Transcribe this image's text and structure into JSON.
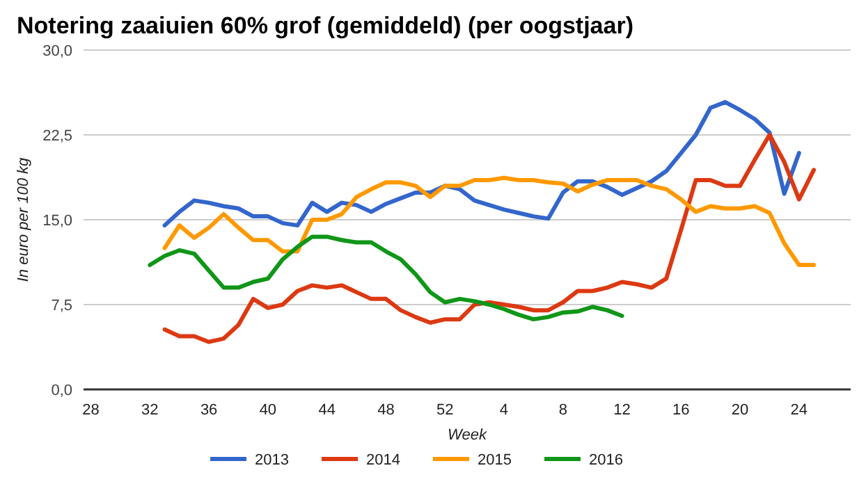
{
  "chart_data": {
    "type": "line",
    "title": "Notering zaaiuien 60% grof (gemiddeld) (per oogstjaar)",
    "xlabel": "Week",
    "ylabel": "In euro per 100 kg",
    "categories": [
      "28",
      null,
      null,
      null,
      "32",
      null,
      null,
      null,
      "36",
      null,
      null,
      null,
      "40",
      null,
      null,
      null,
      "44",
      null,
      null,
      null,
      "48",
      null,
      null,
      null,
      "52",
      null,
      null,
      null,
      "4",
      null,
      null,
      null,
      "8",
      null,
      null,
      null,
      "12",
      null,
      null,
      null,
      "16",
      null,
      null,
      null,
      "20",
      null,
      null,
      null,
      "24",
      null,
      null,
      null
    ],
    "series": [
      {
        "name": "2013",
        "color": "#3366cc",
        "values": [
          null,
          null,
          null,
          null,
          null,
          14.5,
          15.7,
          16.7,
          16.5,
          16.2,
          16.0,
          15.3,
          15.3,
          14.7,
          14.5,
          16.5,
          15.7,
          16.5,
          16.3,
          15.7,
          16.4,
          16.9,
          17.4,
          17.4,
          18.0,
          17.7,
          16.7,
          16.3,
          15.9,
          15.6,
          15.3,
          15.1,
          17.4,
          18.4,
          18.4,
          17.9,
          17.2,
          17.8,
          18.4,
          19.3,
          20.9,
          22.5,
          24.9,
          25.4,
          24.7,
          23.9,
          22.7,
          17.3,
          20.9,
          null,
          null,
          null
        ]
      },
      {
        "name": "2014",
        "color": "#dc3912",
        "values": [
          null,
          null,
          null,
          null,
          null,
          5.3,
          4.7,
          4.7,
          4.2,
          4.5,
          5.7,
          8.0,
          7.2,
          7.5,
          8.7,
          9.2,
          9.0,
          9.2,
          8.6,
          8.0,
          8.0,
          7.0,
          6.4,
          5.9,
          6.2,
          6.2,
          7.5,
          7.7,
          7.5,
          7.3,
          7.0,
          7.0,
          7.7,
          8.7,
          8.7,
          9.0,
          9.5,
          9.3,
          9.0,
          9.8,
          14.1,
          18.5,
          18.5,
          18.0,
          18.0,
          20.3,
          22.5,
          20.1,
          16.8,
          19.4,
          null,
          null
        ]
      },
      {
        "name": "2015",
        "color": "#ff9900",
        "values": [
          null,
          null,
          null,
          null,
          null,
          12.5,
          14.5,
          13.4,
          14.3,
          15.5,
          14.3,
          13.2,
          13.2,
          12.2,
          12.2,
          15.0,
          15.0,
          15.5,
          17.0,
          17.7,
          18.3,
          18.3,
          18.0,
          17.0,
          18.0,
          18.0,
          18.5,
          18.5,
          18.7,
          18.5,
          18.5,
          18.3,
          18.2,
          17.5,
          18.1,
          18.5,
          18.5,
          18.5,
          18.0,
          17.7,
          16.8,
          15.7,
          16.2,
          16.0,
          16.0,
          16.2,
          15.6,
          12.9,
          11.0,
          11.0,
          null,
          null
        ]
      },
      {
        "name": "2016",
        "color": "#109618",
        "values": [
          null,
          null,
          null,
          null,
          11.0,
          11.8,
          12.3,
          12.0,
          10.5,
          9.0,
          9.0,
          9.5,
          9.8,
          11.5,
          12.6,
          13.5,
          13.5,
          13.2,
          13.0,
          13.0,
          12.2,
          11.5,
          10.2,
          8.6,
          7.7,
          8.0,
          7.8,
          7.5,
          7.1,
          6.6,
          6.2,
          6.4,
          6.8,
          6.9,
          7.3,
          7.0,
          6.5,
          null,
          null,
          null,
          null,
          null,
          null,
          null,
          null,
          null,
          null,
          null,
          null,
          null,
          null,
          null
        ]
      }
    ],
    "ylim": [
      0,
      30
    ],
    "yticks": [
      {
        "value": 0,
        "label": "0,0"
      },
      {
        "value": 7.5,
        "label": "7,5"
      },
      {
        "value": 15,
        "label": "15,0"
      },
      {
        "value": 22.5,
        "label": "22,5"
      },
      {
        "value": 30,
        "label": "30,0"
      }
    ],
    "grid": "y",
    "legend": "bottom"
  }
}
